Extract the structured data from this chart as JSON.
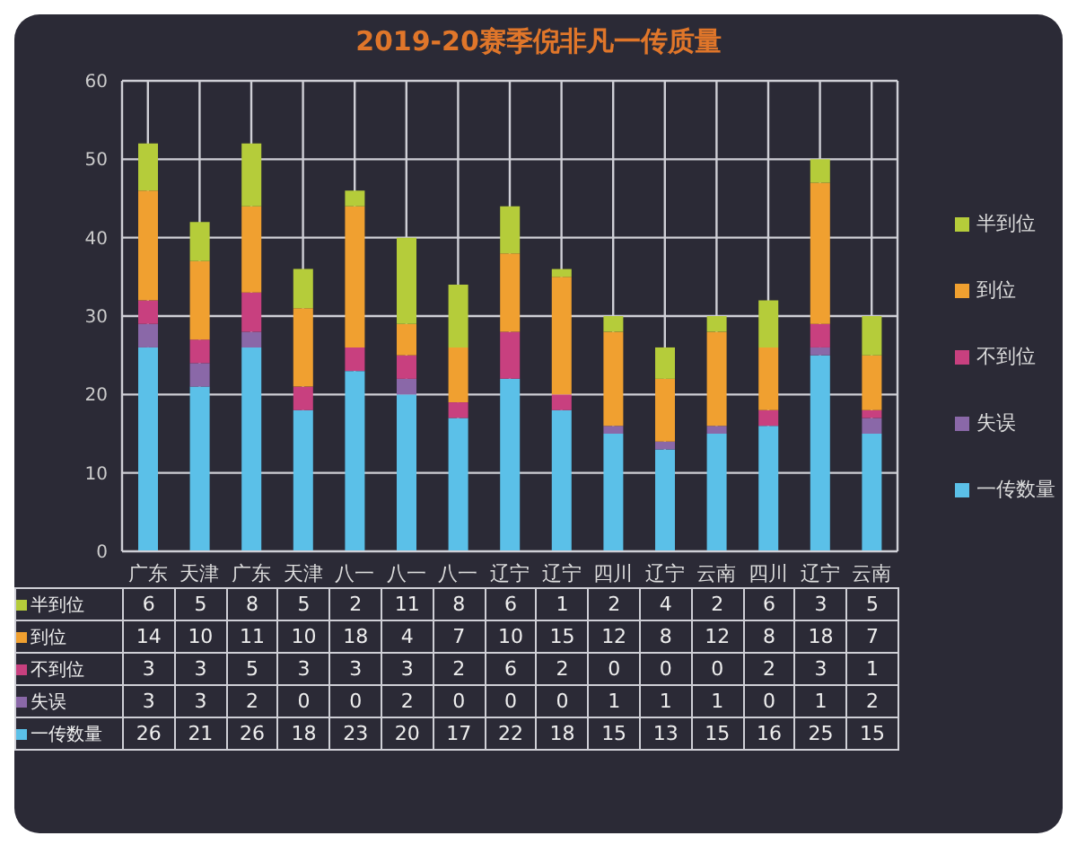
{
  "chart_data": {
    "type": "bar",
    "title": "2019-20赛季倪非凡一传质量",
    "categories": [
      "广东",
      "天津",
      "广东",
      "天津",
      "八一",
      "八一",
      "八一",
      "辽宁",
      "辽宁",
      "四川",
      "辽宁",
      "云南",
      "四川",
      "辽宁",
      "云南"
    ],
    "stacked": true,
    "series": [
      {
        "name": "一传数量",
        "color": "#5bc0e8",
        "values": [
          26,
          21,
          26,
          18,
          23,
          20,
          17,
          22,
          18,
          15,
          13,
          15,
          16,
          25,
          15
        ]
      },
      {
        "name": "失误",
        "color": "#8a68a8",
        "values": [
          3,
          3,
          2,
          0,
          0,
          2,
          0,
          0,
          0,
          1,
          1,
          1,
          0,
          1,
          2
        ]
      },
      {
        "name": "不到位",
        "color": "#c8407f",
        "values": [
          3,
          3,
          5,
          3,
          3,
          3,
          2,
          6,
          2,
          0,
          0,
          0,
          2,
          3,
          1
        ]
      },
      {
        "name": "到位",
        "color": "#f0a030",
        "values": [
          14,
          10,
          11,
          10,
          18,
          4,
          7,
          10,
          15,
          12,
          8,
          12,
          8,
          18,
          7
        ]
      },
      {
        "name": "半到位",
        "color": "#b5cc3a",
        "values": [
          6,
          5,
          8,
          5,
          2,
          11,
          8,
          6,
          1,
          2,
          4,
          2,
          6,
          3,
          5
        ]
      }
    ],
    "ylim": [
      0,
      60
    ],
    "yticks": [
      0,
      10,
      20,
      30,
      40,
      50,
      60
    ],
    "grid": true,
    "legend": "right",
    "data_labels": true
  }
}
